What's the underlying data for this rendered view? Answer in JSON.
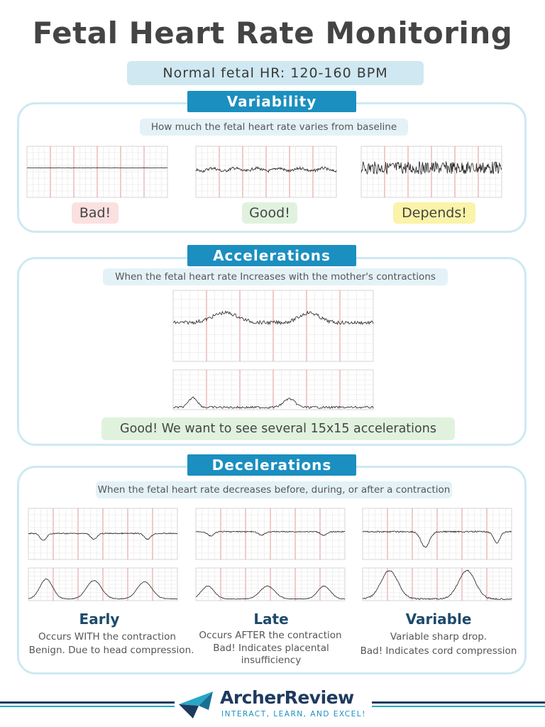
{
  "title": "Fetal Heart Rate Monitoring",
  "normal_range": "Normal fetal HR: 120-160 BPM",
  "variability": {
    "header": "Variability",
    "description": "How much the fetal heart rate varies from baseline",
    "ratings": [
      {
        "label": "Bad!",
        "color": "#fbe0e0"
      },
      {
        "label": "Good!",
        "color": "#e0f2de"
      },
      {
        "label": "Depends!",
        "color": "#faf3a8"
      }
    ]
  },
  "accelerations": {
    "header": "Accelerations",
    "description": "When the fetal heart rate Increases with the mother's contractions",
    "note": "Good! We want to see several 15x15 accelerations",
    "note_color": "#e0f2de"
  },
  "decelerations": {
    "header": "Decelerations",
    "description": "When the fetal heart rate decreases before, during, or after a contraction",
    "types": [
      {
        "name": "Early",
        "line1": "Occurs WITH the contraction",
        "line2": "Benign. Due to head compression."
      },
      {
        "name": "Late",
        "line1": "Occurs AFTER the contraction",
        "line2": "Bad! Indicates placental insufficiency"
      },
      {
        "name": "Variable",
        "line1": "Variable sharp drop.",
        "line2": "Bad! Indicates cord compression"
      }
    ]
  },
  "footer": {
    "brand": "ArcherReview",
    "tagline": "INTERACT, LEARN, AND EXCEL!"
  },
  "colors": {
    "accent": "#1b8fbf",
    "section_border": "#cde9f3",
    "grid_major": "#e08a8a",
    "grid_minor": "#dddddd",
    "brand_navy": "#1f3a5f",
    "brand_teal": "#27a8c6"
  }
}
